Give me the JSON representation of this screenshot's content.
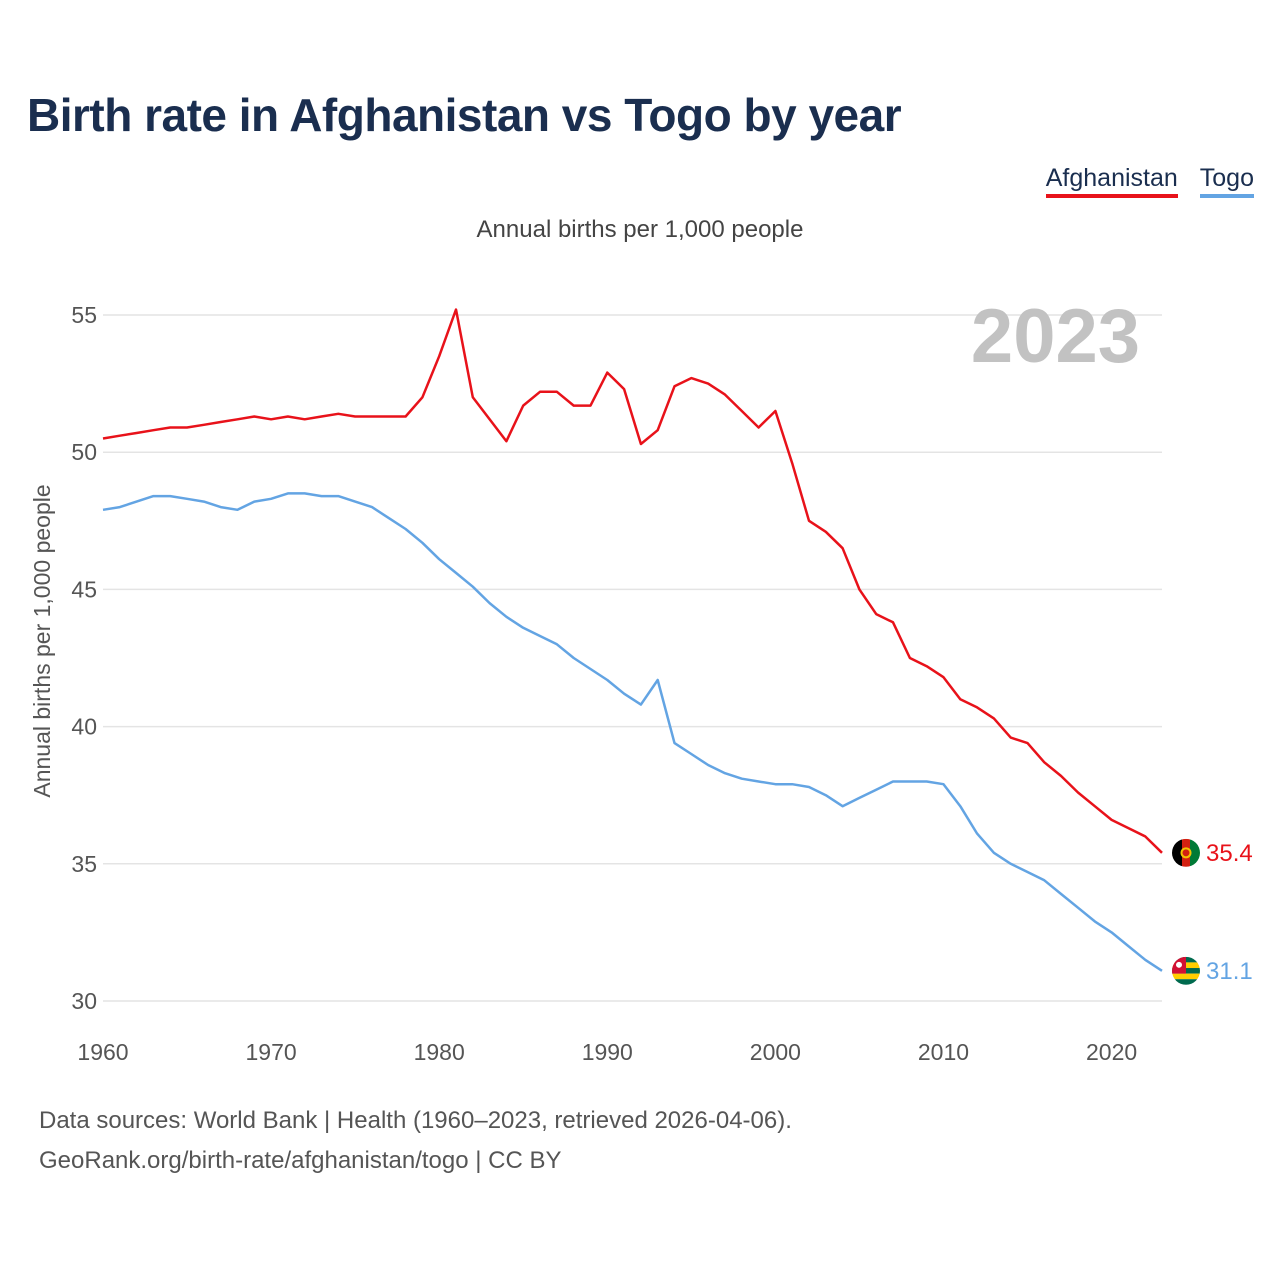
{
  "title": "Birth rate in Afghanistan vs Togo by year",
  "legend": [
    {
      "name": "Afghanistan",
      "color": "#e8121a"
    },
    {
      "name": "Togo",
      "color": "#63a4e3"
    }
  ],
  "footer": {
    "line1": "Data sources: World Bank | Health (1960–2023, retrieved 2026-04-06).",
    "line2": "GeoRank.org/birth-rate/afghanistan/togo | CC BY"
  },
  "chart_data": {
    "type": "line",
    "title": "Birth rate in Afghanistan vs Togo by year",
    "subtitle": "Annual births per 1,000 people",
    "xlabel": "",
    "ylabel": "Annual births per 1,000 people",
    "year_label": "2023",
    "xlim": [
      1960,
      2023
    ],
    "ylim": [
      30,
      55
    ],
    "xticks": [
      1960,
      1970,
      1980,
      1990,
      2000,
      2010,
      2020
    ],
    "yticks": [
      30,
      35,
      40,
      45,
      50,
      55
    ],
    "grid": true,
    "legend_position": "top-right",
    "x": [
      1960,
      1961,
      1962,
      1963,
      1964,
      1965,
      1966,
      1967,
      1968,
      1969,
      1970,
      1971,
      1972,
      1973,
      1974,
      1975,
      1976,
      1977,
      1978,
      1979,
      1980,
      1981,
      1982,
      1983,
      1984,
      1985,
      1986,
      1987,
      1988,
      1989,
      1990,
      1991,
      1992,
      1993,
      1994,
      1995,
      1996,
      1997,
      1998,
      1999,
      2000,
      2001,
      2002,
      2003,
      2004,
      2005,
      2006,
      2007,
      2008,
      2009,
      2010,
      2011,
      2012,
      2013,
      2014,
      2015,
      2016,
      2017,
      2018,
      2019,
      2020,
      2021,
      2022,
      2023
    ],
    "series": [
      {
        "name": "Afghanistan",
        "color": "#e8121a",
        "end_label": "35.4",
        "values": [
          50.5,
          50.6,
          50.7,
          50.8,
          50.9,
          50.9,
          51.0,
          51.1,
          51.2,
          51.3,
          51.2,
          51.3,
          51.2,
          51.3,
          51.4,
          51.3,
          51.3,
          51.3,
          51.3,
          52.0,
          53.5,
          55.2,
          52.0,
          51.2,
          50.4,
          51.7,
          52.2,
          52.2,
          51.7,
          51.7,
          52.9,
          52.3,
          50.3,
          50.8,
          52.4,
          52.7,
          52.5,
          52.1,
          51.5,
          50.9,
          51.5,
          49.6,
          47.5,
          47.1,
          46.5,
          45.0,
          44.1,
          43.8,
          42.5,
          42.2,
          41.8,
          41.0,
          40.7,
          40.3,
          39.6,
          39.4,
          38.7,
          38.2,
          37.6,
          37.1,
          36.6,
          36.3,
          36.0,
          35.4
        ]
      },
      {
        "name": "Togo",
        "color": "#63a4e3",
        "end_label": "31.1",
        "values": [
          47.9,
          48.0,
          48.2,
          48.4,
          48.4,
          48.3,
          48.2,
          48.0,
          47.9,
          48.2,
          48.3,
          48.5,
          48.5,
          48.4,
          48.4,
          48.2,
          48.0,
          47.6,
          47.2,
          46.7,
          46.1,
          45.6,
          45.1,
          44.5,
          44.0,
          43.6,
          43.3,
          43.0,
          42.5,
          42.1,
          41.7,
          41.2,
          40.8,
          41.7,
          39.4,
          39.0,
          38.6,
          38.3,
          38.1,
          38.0,
          37.9,
          37.9,
          37.8,
          37.5,
          37.1,
          37.4,
          37.7,
          38.0,
          38.0,
          38.0,
          37.9,
          37.1,
          36.1,
          35.4,
          35.0,
          34.7,
          34.4,
          33.9,
          33.4,
          32.9,
          32.5,
          32.0,
          31.5,
          31.1
        ]
      }
    ]
  }
}
